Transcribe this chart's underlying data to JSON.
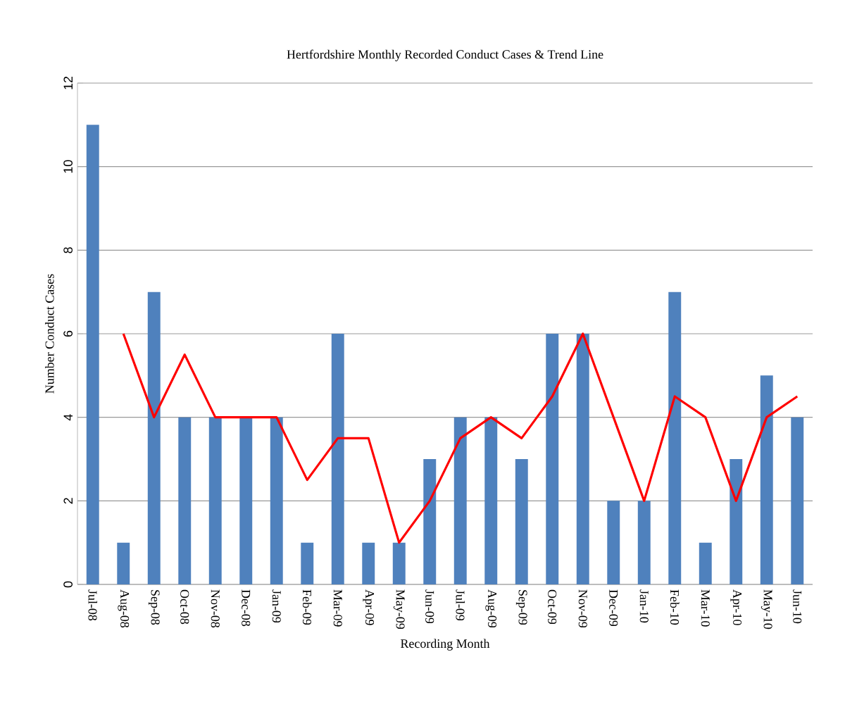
{
  "chart_data": {
    "type": "bar",
    "title": "Hertfordshire Monthly  Recorded Conduct Cases & Trend Line",
    "xlabel": "Recording Month",
    "ylabel": "Number Conduct Cases",
    "categories": [
      "Jul-08",
      "Aug-08",
      "Sep-08",
      "Oct-08",
      "Nov-08",
      "Dec-08",
      "Jan-09",
      "Feb-09",
      "Mar-09",
      "Apr-09",
      "May-09",
      "Jun-09",
      "Jul-09",
      "Aug-09",
      "Sep-09",
      "Oct-09",
      "Nov-09",
      "Dec-09",
      "Jan-10",
      "Feb-10",
      "Mar-10",
      "Apr-10",
      "May-10",
      "Jun-10"
    ],
    "series": [
      {
        "color": "#4f81bd",
        "values": [
          11,
          1,
          7,
          4,
          4,
          4,
          4,
          1,
          6,
          1,
          1,
          3,
          4,
          4,
          3,
          6,
          6,
          2,
          2,
          7,
          1,
          3,
          5,
          4
        ]
      },
      {
        "type": "line",
        "color": "#ff0000",
        "values": [
          null,
          6,
          4,
          5.5,
          4,
          4,
          4,
          2.5,
          3.5,
          3.5,
          1,
          2,
          3.5,
          4,
          3.5,
          4.5,
          6,
          4,
          2,
          4.5,
          4,
          2,
          4,
          4.5
        ]
      }
    ],
    "ylim": [
      0,
      12
    ],
    "yticks": [
      0,
      2,
      4,
      6,
      8,
      10,
      12
    ],
    "grid": "y",
    "marker": "none"
  }
}
